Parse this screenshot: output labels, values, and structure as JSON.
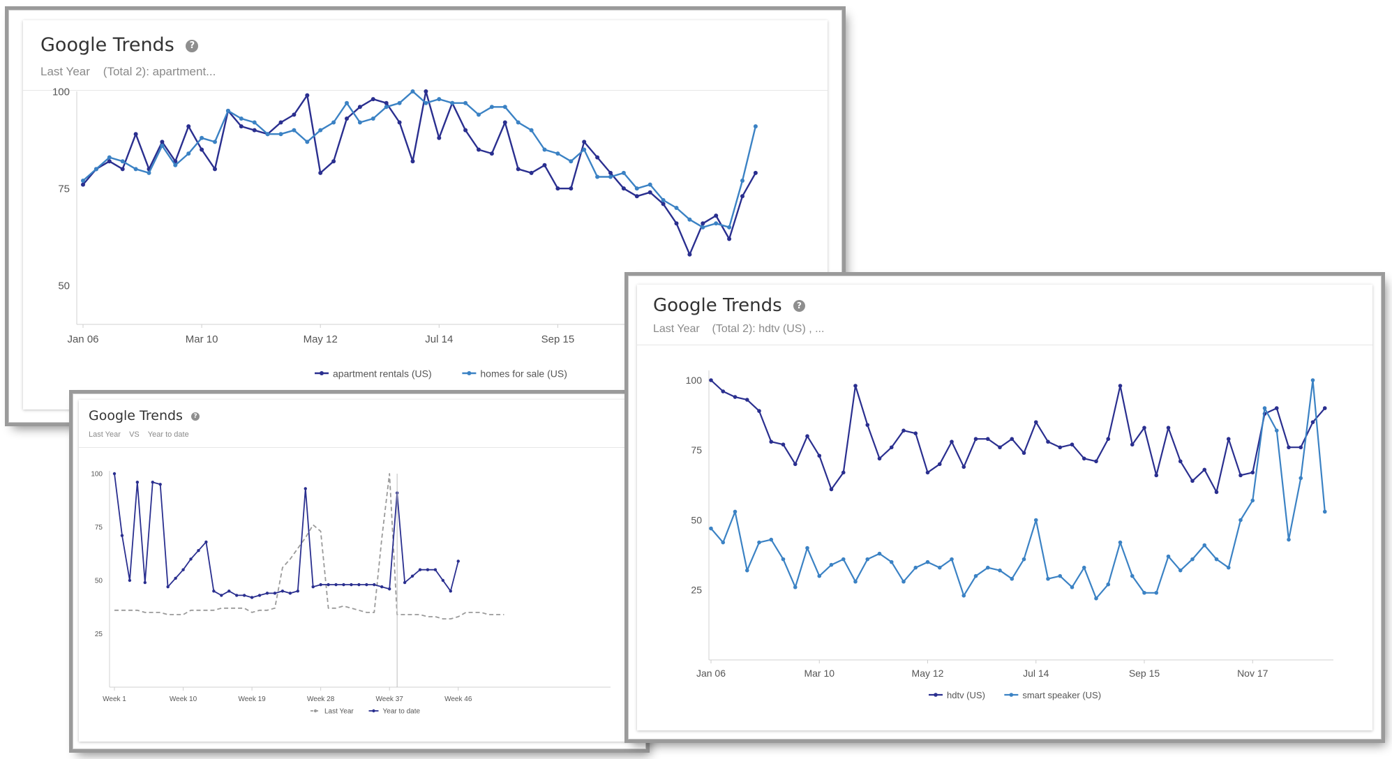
{
  "colors": {
    "dark": "#2a2f8f",
    "light": "#3b82c4",
    "gray": "#9a9a9a"
  },
  "cards": [
    {
      "title": "Google Trends",
      "help_icon": "?",
      "subtitle": "Last Year    (Total 2): apartment..."
    },
    {
      "title": "Google Trends",
      "help_icon": "?",
      "subtitle": "Last Year    (Total 2): hdtv (US) , ..."
    },
    {
      "title": "Google Trends",
      "help_icon": "?",
      "subtitle": "Last Year    VS    Year to date"
    }
  ],
  "chart_data": [
    {
      "type": "line",
      "ylim": [
        40,
        100
      ],
      "yticks": [
        50,
        75,
        100
      ],
      "x_tick_labels": [
        "Jan 06",
        "Mar 10",
        "May 12",
        "Jul 14",
        "Sep 15"
      ],
      "x_tick_index": [
        0,
        9,
        18,
        27,
        36
      ],
      "legend_position": "bottom",
      "series": [
        {
          "name": "apartment rentals (US)",
          "color": "#2a2f8f",
          "values": [
            76,
            80,
            82,
            80,
            89,
            80,
            87,
            82,
            91,
            85,
            80,
            95,
            91,
            90,
            89,
            92,
            94,
            99,
            79,
            82,
            93,
            96,
            98,
            97,
            92,
            82,
            100,
            88,
            97,
            90,
            85,
            84,
            92,
            80,
            79,
            81,
            75,
            75,
            87,
            83,
            79,
            75,
            73,
            74,
            71,
            66,
            58,
            66,
            68,
            62,
            73,
            79
          ]
        },
        {
          "name": "homes for sale (US)",
          "color": "#3b82c4",
          "values": [
            77,
            80,
            83,
            82,
            80,
            79,
            86,
            81,
            84,
            88,
            87,
            95,
            93,
            92,
            89,
            89,
            90,
            87,
            90,
            92,
            97,
            92,
            93,
            96,
            97,
            100,
            97,
            98,
            97,
            97,
            94,
            96,
            96,
            92,
            90,
            85,
            84,
            82,
            85,
            78,
            78,
            79,
            75,
            76,
            72,
            70,
            67,
            65,
            66,
            65,
            77,
            91
          ]
        }
      ]
    },
    {
      "type": "line",
      "ylim": [
        0,
        100
      ],
      "yticks": [
        25,
        50,
        75,
        100
      ],
      "x_tick_labels": [
        "Jan 06",
        "Mar 10",
        "May 12",
        "Jul 14",
        "Sep 15",
        "Nov 17"
      ],
      "x_tick_index": [
        0,
        9,
        18,
        27,
        36,
        45
      ],
      "legend_position": "bottom",
      "series": [
        {
          "name": "hdtv (US)",
          "color": "#2a2f8f",
          "values": [
            100,
            96,
            94,
            93,
            89,
            78,
            77,
            70,
            80,
            73,
            61,
            67,
            98,
            84,
            72,
            76,
            82,
            81,
            67,
            70,
            78,
            69,
            79,
            79,
            76,
            79,
            74,
            85,
            78,
            76,
            77,
            72,
            71,
            79,
            98,
            77,
            83,
            66,
            83,
            71,
            64,
            68,
            60,
            79,
            66,
            67,
            88,
            90,
            76,
            76,
            85,
            90
          ]
        },
        {
          "name": "smart speaker (US)",
          "color": "#3b82c4",
          "values": [
            47,
            42,
            53,
            32,
            42,
            43,
            36,
            26,
            40,
            30,
            34,
            36,
            28,
            36,
            38,
            35,
            28,
            33,
            35,
            33,
            36,
            23,
            30,
            33,
            32,
            29,
            36,
            50,
            29,
            30,
            26,
            33,
            22,
            27,
            42,
            30,
            24,
            24,
            37,
            32,
            36,
            41,
            36,
            33,
            50,
            57,
            90,
            82,
            43,
            65,
            100,
            53
          ]
        }
      ]
    },
    {
      "type": "line",
      "ylim": [
        0,
        100
      ],
      "yticks": [
        25,
        50,
        75,
        100
      ],
      "x_tick_labels": [
        "Week 1",
        "Week 10",
        "Week 19",
        "Week 28",
        "Week 37",
        "Week 46"
      ],
      "x_tick_week": [
        1,
        10,
        19,
        28,
        37,
        46
      ],
      "x_range_weeks": [
        1,
        53
      ],
      "legend_position": "bottom",
      "series": [
        {
          "name": "Last Year",
          "color": "#9a9a9a",
          "dash": true,
          "x": [
            1,
            2,
            3,
            4,
            5,
            6,
            7,
            8,
            9,
            10,
            11,
            12,
            13,
            14,
            15,
            16,
            17,
            18,
            19,
            20,
            21,
            22,
            23,
            24,
            25,
            26,
            27,
            28,
            29,
            30,
            31,
            32,
            33,
            34,
            35,
            36,
            37,
            38,
            39,
            40,
            41,
            42,
            43,
            44,
            45,
            46,
            47,
            48,
            49,
            50,
            51,
            52
          ],
          "values": [
            36,
            36,
            36,
            36,
            35,
            35,
            35,
            34,
            34,
            34,
            36,
            36,
            36,
            36,
            37,
            37,
            37,
            37,
            35,
            36,
            36,
            37,
            56,
            60,
            65,
            70,
            76,
            73,
            37,
            37,
            38,
            37,
            36,
            35,
            35,
            70,
            100,
            34,
            34,
            34,
            34,
            33,
            33,
            32,
            32,
            33,
            35,
            35,
            35,
            34,
            34,
            34
          ]
        },
        {
          "name": "Year to date",
          "color": "#2a2f8f",
          "dash": false,
          "x": [
            1,
            2,
            3,
            4,
            5,
            6,
            7,
            8,
            9,
            10,
            11,
            12,
            13,
            14,
            15,
            16,
            17,
            18,
            19,
            20,
            21,
            22,
            23,
            24,
            25,
            26,
            27,
            28,
            29,
            30,
            31,
            32,
            33,
            34,
            35,
            36,
            37,
            38,
            39,
            40,
            41,
            42,
            43,
            44,
            45,
            46
          ],
          "values": [
            100,
            71,
            50,
            96,
            49,
            96,
            95,
            47,
            51,
            55,
            60,
            64,
            68,
            45,
            43,
            45,
            43,
            43,
            42,
            43,
            44,
            44,
            45,
            44,
            45,
            93,
            47,
            48,
            48,
            48,
            48,
            48,
            48,
            48,
            48,
            47,
            46,
            91,
            49,
            52,
            55,
            55,
            55,
            50,
            45,
            59
          ]
        }
      ]
    }
  ]
}
